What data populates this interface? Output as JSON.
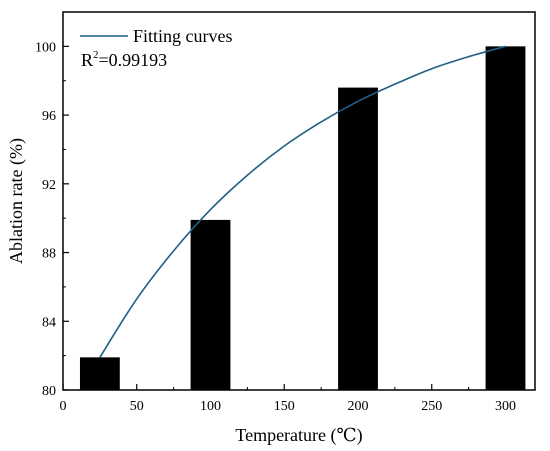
{
  "chart_data": {
    "type": "bar",
    "x": [
      25,
      100,
      200,
      300
    ],
    "values": [
      81.9,
      89.9,
      97.6,
      100.0
    ],
    "bar_width": 18,
    "xlim": [
      0,
      320
    ],
    "ylim": [
      80,
      102
    ],
    "xticks": [
      0,
      50,
      100,
      150,
      200,
      250,
      300
    ],
    "yticks": [
      80,
      84,
      88,
      92,
      96,
      100
    ],
    "xlabel": "Temperature (℃)",
    "ylabel": "Ablation rate (%)",
    "bar_color": "#000000",
    "grid": false,
    "fit": {
      "name": "Fitting curves",
      "color": "#1f5f86",
      "x": [
        25,
        50,
        75,
        100,
        125,
        150,
        175,
        200,
        225,
        250,
        275,
        300
      ],
      "y": [
        81.9,
        85.3,
        88.1,
        90.5,
        92.5,
        94.2,
        95.6,
        96.8,
        97.8,
        98.7,
        99.4,
        100.0
      ]
    },
    "legend": {
      "position": "top-left",
      "entry": "Fitting curves",
      "r2_prefix": "R",
      "r2_sup": "2",
      "r2_value": "=0.99193"
    }
  }
}
